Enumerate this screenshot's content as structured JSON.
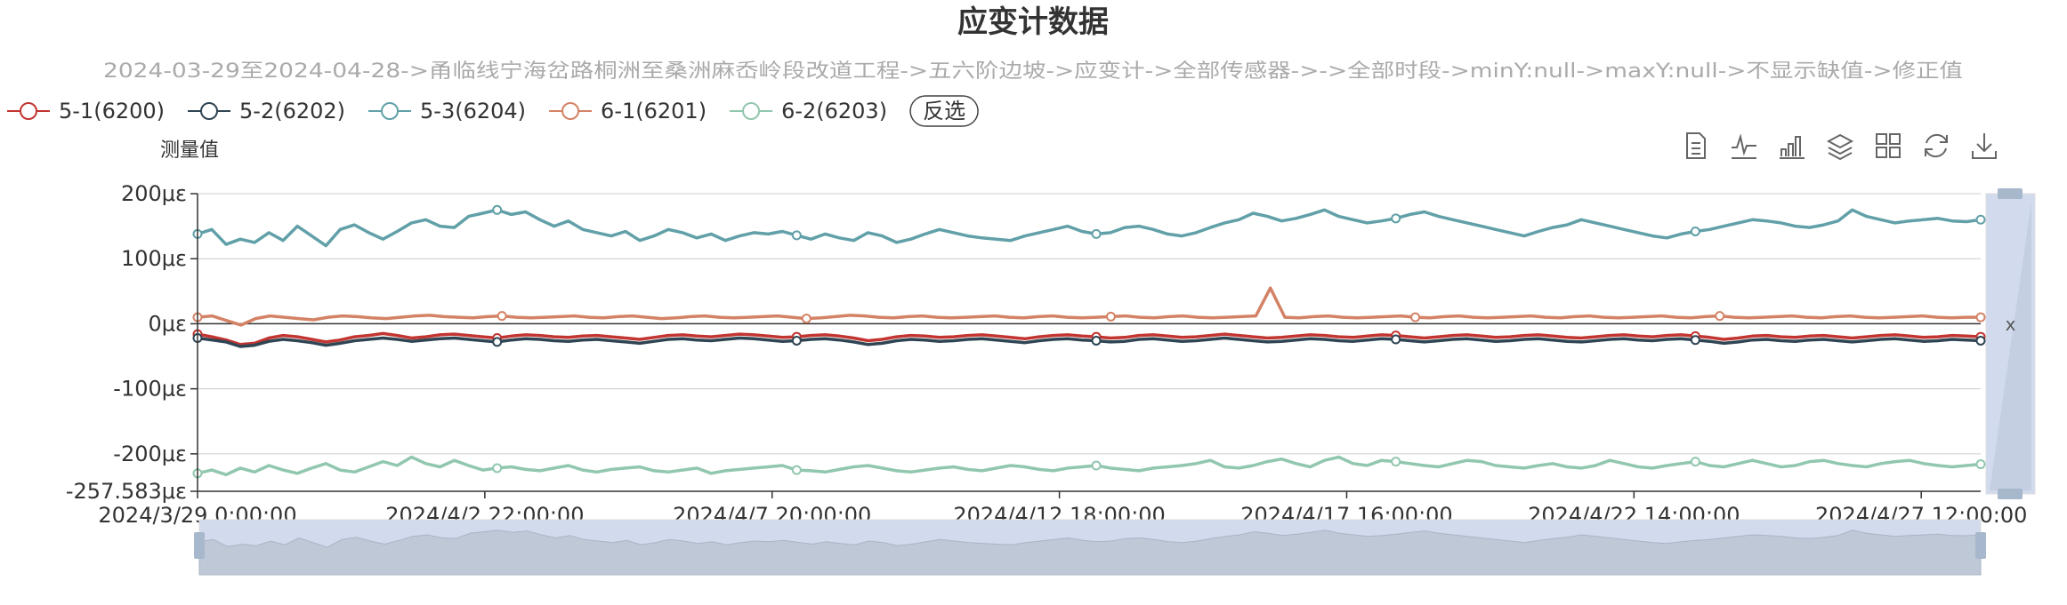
{
  "chart_data": {
    "type": "line",
    "title": "应变计数据",
    "subtitle": "2024-03-29至2024-04-28->甬临线宁海岔路桐洲至桑洲麻岙岭段改道工程->五六阶边坡->应变计->全部传感器->->全部时段->minY:null->maxY:null->不显示缺值->修正值",
    "ylabel": "测量值",
    "y_unit": "με",
    "ylim": [
      -257.583,
      200
    ],
    "y_ticks": [
      "200με",
      "100με",
      "0με",
      "-100με",
      "-200με",
      "-257.583με"
    ],
    "y_tick_values": [
      200,
      100,
      0,
      -100,
      -200,
      -257.583
    ],
    "x_ticks": [
      "2024/3/29 0:00:00",
      "2024/4/2 22:00:00",
      "2024/4/7 20:00:00",
      "2024/4/12 18:00:00",
      "2024/4/17 16:00:00",
      "2024/4/22 14:00:00",
      "2024/4/27 12:00:00"
    ],
    "x_range": [
      "2024/3/29 0:00:00",
      "2024/4/28 0:00:00"
    ],
    "grid": true,
    "legend_position": "top-left",
    "legend_invert_label": "反选",
    "zoom_slider_label": "x",
    "toolbox_icons": [
      "data-view-icon",
      "line-chart-icon",
      "bar-chart-icon",
      "stack-icon",
      "tiled-icon",
      "restore-icon",
      "save-image-icon"
    ],
    "series": [
      {
        "name": "5-1(6200)",
        "color": "#c23531",
        "values": [
          -16,
          -20,
          -25,
          -32,
          -30,
          -22,
          -18,
          -20,
          -24,
          -28,
          -25,
          -20,
          -18,
          -15,
          -18,
          -22,
          -20,
          -17,
          -16,
          -18,
          -20,
          -22,
          -19,
          -17,
          -18,
          -20,
          -21,
          -19,
          -18,
          -20,
          -22,
          -24,
          -21,
          -18,
          -17,
          -19,
          -20,
          -18,
          -16,
          -17,
          -19,
          -21,
          -20,
          -18,
          -17,
          -19,
          -22,
          -26,
          -24,
          -20,
          -18,
          -19,
          -21,
          -20,
          -18,
          -17,
          -19,
          -21,
          -23,
          -20,
          -18,
          -17,
          -19,
          -20,
          -22,
          -21,
          -18,
          -17,
          -19,
          -21,
          -20,
          -18,
          -16,
          -18,
          -20,
          -22,
          -21,
          -19,
          -17,
          -18,
          -20,
          -21,
          -19,
          -17,
          -18,
          -20,
          -22,
          -20,
          -18,
          -17,
          -19,
          -21,
          -20,
          -18,
          -17,
          -19,
          -21,
          -22,
          -20,
          -18,
          -17,
          -19,
          -20,
          -18,
          -17,
          -19,
          -21,
          -24,
          -22,
          -19,
          -18,
          -20,
          -21,
          -19,
          -18,
          -20,
          -22,
          -20,
          -18,
          -17,
          -19,
          -21,
          -20,
          -18,
          -19,
          -20
        ]
      },
      {
        "name": "5-2(6202)",
        "color": "#2f4554",
        "values": [
          -22,
          -25,
          -28,
          -35,
          -33,
          -27,
          -24,
          -26,
          -29,
          -33,
          -30,
          -26,
          -24,
          -22,
          -24,
          -27,
          -25,
          -23,
          -22,
          -24,
          -26,
          -28,
          -25,
          -23,
          -24,
          -26,
          -27,
          -25,
          -24,
          -26,
          -28,
          -30,
          -27,
          -24,
          -23,
          -25,
          -26,
          -24,
          -22,
          -23,
          -25,
          -27,
          -26,
          -24,
          -23,
          -25,
          -28,
          -32,
          -30,
          -26,
          -24,
          -25,
          -27,
          -26,
          -24,
          -23,
          -25,
          -27,
          -29,
          -26,
          -24,
          -23,
          -25,
          -26,
          -28,
          -27,
          -24,
          -23,
          -25,
          -27,
          -26,
          -24,
          -22,
          -24,
          -26,
          -28,
          -27,
          -25,
          -23,
          -24,
          -26,
          -27,
          -25,
          -23,
          -24,
          -26,
          -28,
          -26,
          -24,
          -23,
          -25,
          -27,
          -26,
          -24,
          -23,
          -25,
          -27,
          -28,
          -26,
          -24,
          -23,
          -25,
          -26,
          -24,
          -23,
          -25,
          -27,
          -30,
          -28,
          -25,
          -24,
          -26,
          -27,
          -25,
          -24,
          -26,
          -28,
          -26,
          -24,
          -23,
          -25,
          -27,
          -26,
          -24,
          -25,
          -26
        ]
      },
      {
        "name": "5-3(6204)",
        "color": "#61a0a8",
        "values": [
          138,
          145,
          122,
          130,
          125,
          140,
          128,
          150,
          135,
          120,
          145,
          152,
          140,
          130,
          142,
          155,
          160,
          150,
          148,
          165,
          170,
          175,
          168,
          172,
          160,
          150,
          158,
          145,
          140,
          135,
          142,
          128,
          135,
          145,
          140,
          132,
          138,
          128,
          135,
          140,
          138,
          142,
          136,
          130,
          138,
          132,
          128,
          140,
          135,
          125,
          130,
          138,
          145,
          140,
          135,
          132,
          130,
          128,
          135,
          140,
          145,
          150,
          142,
          138,
          140,
          148,
          150,
          145,
          138,
          135,
          140,
          148,
          155,
          160,
          170,
          165,
          158,
          162,
          168,
          175,
          165,
          160,
          155,
          158,
          162,
          168,
          172,
          165,
          160,
          155,
          150,
          145,
          140,
          135,
          142,
          148,
          152,
          160,
          155,
          150,
          145,
          140,
          135,
          132,
          138,
          142,
          145,
          150,
          155,
          160,
          158,
          155,
          150,
          148,
          152,
          158,
          175,
          165,
          160,
          155,
          158,
          160,
          162,
          158,
          157,
          160
        ]
      },
      {
        "name": "6-1(6201)",
        "color": "#d48265",
        "values": [
          10,
          12,
          5,
          -2,
          8,
          12,
          10,
          8,
          6,
          10,
          12,
          11,
          9,
          8,
          10,
          12,
          13,
          11,
          10,
          9,
          11,
          12,
          10,
          9,
          10,
          11,
          12,
          10,
          9,
          11,
          12,
          10,
          8,
          9,
          11,
          12,
          10,
          9,
          10,
          11,
          12,
          10,
          8,
          9,
          11,
          13,
          12,
          10,
          9,
          11,
          12,
          10,
          9,
          10,
          11,
          12,
          10,
          9,
          11,
          12,
          10,
          9,
          10,
          11,
          12,
          10,
          9,
          11,
          12,
          10,
          9,
          10,
          11,
          12,
          55,
          10,
          9,
          11,
          12,
          10,
          9,
          10,
          11,
          12,
          10,
          9,
          11,
          12,
          10,
          9,
          10,
          11,
          12,
          10,
          9,
          11,
          12,
          10,
          9,
          10,
          11,
          12,
          10,
          9,
          11,
          12,
          10,
          9,
          10,
          11,
          12,
          10,
          9,
          11,
          12,
          10,
          9,
          10,
          11,
          12,
          10,
          9,
          10,
          10
        ]
      },
      {
        "name": "6-2(6203)",
        "color": "#91c7ae",
        "values": [
          -230,
          -225,
          -232,
          -222,
          -228,
          -218,
          -225,
          -230,
          -222,
          -215,
          -225,
          -228,
          -220,
          -212,
          -218,
          -205,
          -215,
          -220,
          -210,
          -218,
          -225,
          -222,
          -220,
          -224,
          -226,
          -222,
          -218,
          -225,
          -228,
          -224,
          -222,
          -220,
          -226,
          -228,
          -225,
          -222,
          -230,
          -226,
          -224,
          -222,
          -220,
          -218,
          -225,
          -226,
          -228,
          -224,
          -220,
          -218,
          -222,
          -226,
          -228,
          -225,
          -222,
          -220,
          -224,
          -226,
          -222,
          -218,
          -220,
          -224,
          -226,
          -222,
          -220,
          -218,
          -222,
          -224,
          -226,
          -222,
          -220,
          -218,
          -215,
          -210,
          -220,
          -222,
          -218,
          -212,
          -208,
          -215,
          -220,
          -210,
          -205,
          -215,
          -218,
          -210,
          -212,
          -215,
          -218,
          -220,
          -215,
          -210,
          -212,
          -218,
          -220,
          -222,
          -218,
          -215,
          -220,
          -222,
          -218,
          -210,
          -215,
          -220,
          -222,
          -218,
          -215,
          -212,
          -218,
          -220,
          -215,
          -210,
          -215,
          -220,
          -218,
          -212,
          -210,
          -215,
          -218,
          -220,
          -215,
          -212,
          -210,
          -215,
          -218,
          -220,
          -218,
          -216
        ]
      }
    ]
  }
}
